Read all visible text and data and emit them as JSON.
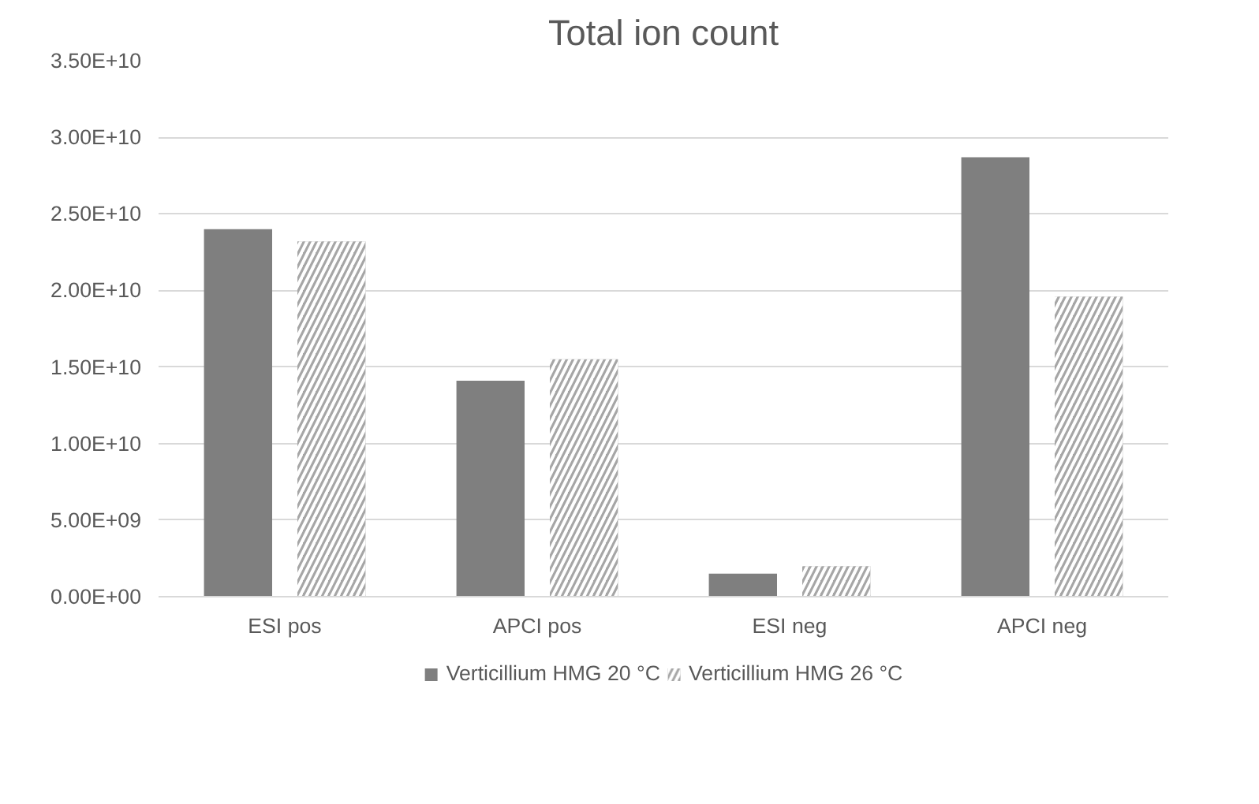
{
  "chart_data": {
    "type": "bar",
    "title": "Total ion count",
    "categories": [
      "ESI pos",
      "APCI pos",
      "ESI neg",
      "APCI neg"
    ],
    "series": [
      {
        "name": "Verticillium HMG 20 °C",
        "color": "#7f7f7f",
        "values": [
          24000000000.0,
          14100000000.0,
          1500000000.0,
          28700000000.0
        ]
      },
      {
        "name": "Verticillium HMG 26 °C",
        "color": "#a6a6a6",
        "values": [
          23200000000.0,
          15500000000.0,
          2000000000.0,
          19600000000.0
        ]
      }
    ],
    "ylim": [
      0,
      35000000000.0
    ],
    "yticks": [
      {
        "value": 0,
        "label": "0.00E+00"
      },
      {
        "value": 5000000000.0,
        "label": "5.00E+09"
      },
      {
        "value": 10000000000.0,
        "label": "1.00E+10"
      },
      {
        "value": 15000000000.0,
        "label": "1.50E+10"
      },
      {
        "value": 20000000000.0,
        "label": "2.00E+10"
      },
      {
        "value": 25000000000.0,
        "label": "2.50E+10"
      },
      {
        "value": 30000000000.0,
        "label": "3.00E+10"
      },
      {
        "value": 35000000000.0,
        "label": "3.50E+10"
      }
    ],
    "grid": "y",
    "legend": "bottom"
  }
}
